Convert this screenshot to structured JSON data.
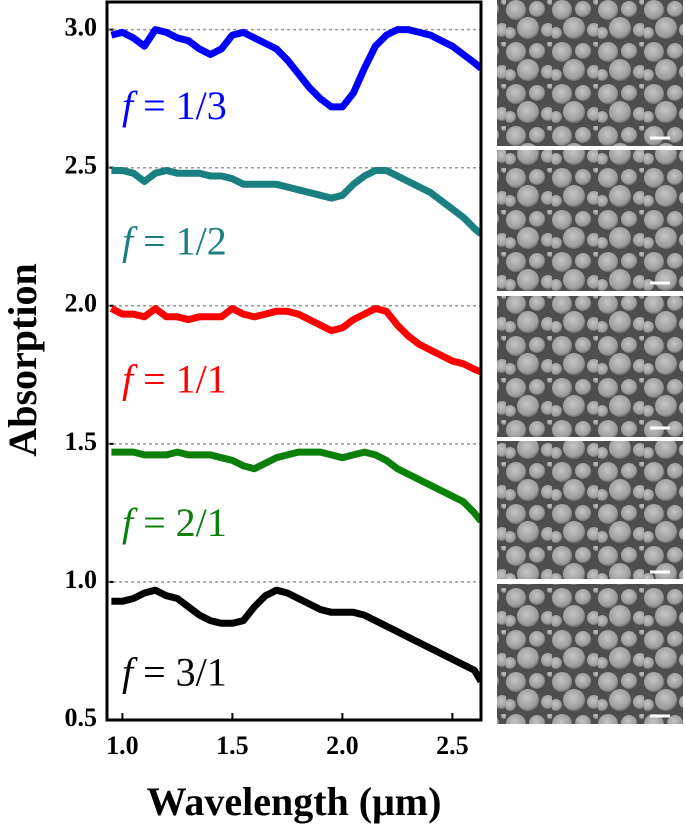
{
  "chart_data": {
    "type": "line",
    "xlabel": "Wavelength (μm)",
    "ylabel": "Absorption",
    "xlim": [
      0.93,
      2.63
    ],
    "ylim": [
      0.5,
      3.1
    ],
    "xticks": [
      {
        "value": 1,
        "label": "1.0"
      },
      1.5,
      {
        "value": 2,
        "label": "2.0"
      },
      2.5
    ],
    "yticks": [
      0.5,
      {
        "value": 1,
        "label": "1.0"
      },
      1.5,
      {
        "value": 2,
        "label": "2.0"
      },
      2.5,
      {
        "value": 3,
        "label": "3.0"
      }
    ],
    "grid": true,
    "x": [
      0.95,
      1.0,
      1.05,
      1.1,
      1.15,
      1.2,
      1.25,
      1.3,
      1.35,
      1.4,
      1.45,
      1.5,
      1.55,
      1.6,
      1.65,
      1.7,
      1.75,
      1.8,
      1.85,
      1.9,
      1.95,
      2.0,
      2.05,
      2.1,
      2.15,
      2.2,
      2.25,
      2.3,
      2.35,
      2.4,
      2.45,
      2.5,
      2.55,
      2.6,
      2.63
    ],
    "series": [
      {
        "name": "f = 1/3",
        "color": "#0000ff",
        "values": [
          2.98,
          2.99,
          2.97,
          2.94,
          3.0,
          2.99,
          2.97,
          2.96,
          2.93,
          2.91,
          2.93,
          2.98,
          2.99,
          2.97,
          2.95,
          2.93,
          2.89,
          2.84,
          2.79,
          2.75,
          2.72,
          2.72,
          2.77,
          2.86,
          2.94,
          2.98,
          3.0,
          3.0,
          2.99,
          2.98,
          2.96,
          2.94,
          2.91,
          2.88,
          2.86
        ]
      },
      {
        "name": "f = 1/2",
        "color": "#1a7f80",
        "values": [
          2.49,
          2.49,
          2.48,
          2.45,
          2.48,
          2.49,
          2.48,
          2.48,
          2.48,
          2.47,
          2.47,
          2.46,
          2.44,
          2.44,
          2.44,
          2.44,
          2.43,
          2.42,
          2.41,
          2.4,
          2.39,
          2.4,
          2.44,
          2.47,
          2.49,
          2.49,
          2.47,
          2.45,
          2.43,
          2.41,
          2.38,
          2.35,
          2.32,
          2.28,
          2.26
        ]
      },
      {
        "name": "f = 1/1",
        "color": "#ff0000",
        "values": [
          1.99,
          1.97,
          1.97,
          1.96,
          1.99,
          1.96,
          1.96,
          1.95,
          1.96,
          1.96,
          1.96,
          1.99,
          1.97,
          1.96,
          1.97,
          1.98,
          1.98,
          1.97,
          1.95,
          1.93,
          1.91,
          1.92,
          1.95,
          1.97,
          1.99,
          1.98,
          1.93,
          1.89,
          1.86,
          1.84,
          1.82,
          1.8,
          1.79,
          1.77,
          1.76
        ]
      },
      {
        "name": "f = 2/1",
        "color": "#0a800a",
        "values": [
          1.47,
          1.47,
          1.47,
          1.46,
          1.46,
          1.46,
          1.47,
          1.46,
          1.46,
          1.46,
          1.45,
          1.44,
          1.42,
          1.41,
          1.43,
          1.45,
          1.46,
          1.47,
          1.47,
          1.47,
          1.46,
          1.45,
          1.46,
          1.47,
          1.46,
          1.44,
          1.41,
          1.39,
          1.37,
          1.35,
          1.33,
          1.31,
          1.29,
          1.25,
          1.22
        ]
      },
      {
        "name": "f = 3/1",
        "color": "#000000",
        "values": [
          0.93,
          0.93,
          0.94,
          0.96,
          0.97,
          0.95,
          0.94,
          0.91,
          0.88,
          0.86,
          0.85,
          0.85,
          0.86,
          0.91,
          0.95,
          0.97,
          0.96,
          0.94,
          0.92,
          0.9,
          0.89,
          0.89,
          0.89,
          0.88,
          0.86,
          0.84,
          0.82,
          0.8,
          0.78,
          0.76,
          0.74,
          0.72,
          0.7,
          0.68,
          0.64
        ]
      }
    ]
  }
}
